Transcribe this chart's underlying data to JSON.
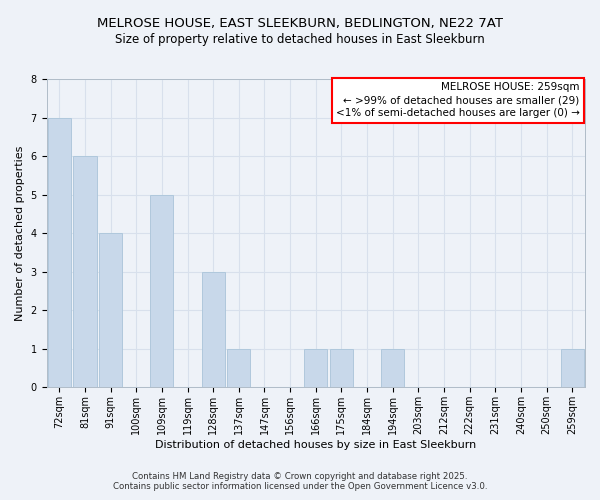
{
  "title": "MELROSE HOUSE, EAST SLEEKBURN, BEDLINGTON, NE22 7AT",
  "subtitle": "Size of property relative to detached houses in East Sleekburn",
  "xlabel": "Distribution of detached houses by size in East Sleekburn",
  "ylabel": "Number of detached properties",
  "bar_color": "#c8d8ea",
  "bar_edge_color": "#b0c8dc",
  "categories": [
    "72sqm",
    "81sqm",
    "91sqm",
    "100sqm",
    "109sqm",
    "119sqm",
    "128sqm",
    "137sqm",
    "147sqm",
    "156sqm",
    "166sqm",
    "175sqm",
    "184sqm",
    "194sqm",
    "203sqm",
    "212sqm",
    "222sqm",
    "231sqm",
    "240sqm",
    "250sqm",
    "259sqm"
  ],
  "values": [
    7,
    6,
    4,
    0,
    5,
    0,
    3,
    1,
    0,
    0,
    1,
    1,
    0,
    1,
    0,
    0,
    0,
    0,
    0,
    0,
    1
  ],
  "ylim": [
    0,
    8
  ],
  "yticks": [
    0,
    1,
    2,
    3,
    4,
    5,
    6,
    7,
    8
  ],
  "legend_title": "MELROSE HOUSE: 259sqm",
  "legend_line1": "← >99% of detached houses are smaller (29)",
  "legend_line2": "<1% of semi-detached houses are larger (0) →",
  "legend_box_color": "white",
  "legend_box_edge_color": "red",
  "grid_color": "#d8e0ec",
  "plot_bg_color": "#eef2f8",
  "fig_bg_color": "#eef2f8",
  "footnote1": "Contains HM Land Registry data © Crown copyright and database right 2025.",
  "footnote2": "Contains public sector information licensed under the Open Government Licence v3.0.",
  "title_fontsize": 9.5,
  "subtitle_fontsize": 8.5,
  "axis_label_fontsize": 8.0,
  "tick_fontsize": 7.0,
  "legend_fontsize": 7.5,
  "footnote_fontsize": 6.2
}
